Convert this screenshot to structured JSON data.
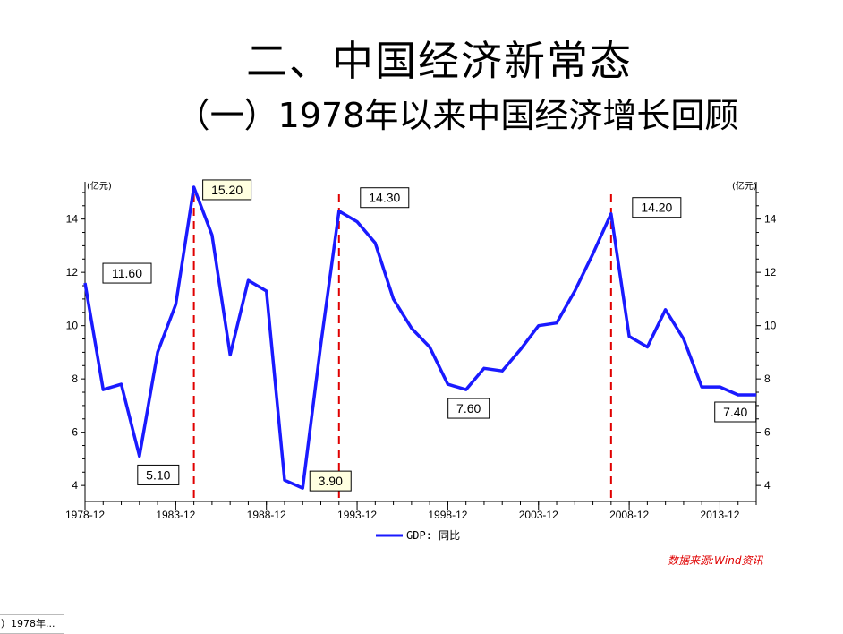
{
  "slide": {
    "title": "二、中国经济新常态",
    "subtitle": "（一）1978年以来中国经济增长回顾",
    "source": "数据来源:Wind资讯",
    "tab_label": "）1978年..."
  },
  "chart_data": {
    "type": "line",
    "title": "",
    "xlabel": "",
    "ylabel_left": "(亿元)",
    "ylabel_right": "(亿元)",
    "ylim": [
      3.4,
      15.4
    ],
    "yticks": [
      4,
      6,
      8,
      10,
      12,
      14
    ],
    "x_tick_labels": [
      "1978-12",
      "1983-12",
      "1988-12",
      "1993-12",
      "1998-12",
      "2003-12",
      "2008-12",
      "2013-12"
    ],
    "x_tick_years": [
      1978,
      1983,
      1988,
      1993,
      1998,
      2003,
      2008,
      2013
    ],
    "xlim": [
      1978,
      2015
    ],
    "legend_position": "bottom-center",
    "grid": false,
    "series": [
      {
        "name": "GDP: 同比",
        "color": "#1a1aff",
        "x": [
          1978,
          1979,
          1980,
          1981,
          1982,
          1983,
          1984,
          1985,
          1986,
          1987,
          1988,
          1989,
          1990,
          1991,
          1992,
          1993,
          1994,
          1995,
          1996,
          1997,
          1998,
          1999,
          2000,
          2001,
          2002,
          2003,
          2004,
          2005,
          2006,
          2007,
          2008,
          2009,
          2010,
          2011,
          2012,
          2013,
          2014,
          2015
        ],
        "values": [
          11.6,
          7.6,
          7.8,
          5.1,
          9.0,
          10.8,
          15.2,
          13.4,
          8.9,
          11.7,
          11.3,
          4.2,
          3.9,
          9.3,
          14.3,
          13.9,
          13.1,
          11.0,
          9.9,
          9.2,
          7.8,
          7.6,
          8.4,
          8.3,
          9.1,
          10.0,
          10.1,
          11.3,
          12.7,
          14.2,
          9.6,
          9.2,
          10.6,
          9.5,
          7.7,
          7.7,
          7.4,
          7.4
        ]
      }
    ],
    "marker_lines": [
      1984,
      1992,
      2007
    ],
    "marker_color": "#e00000",
    "annotations": [
      {
        "label": "11.60",
        "x": 1978,
        "y": 11.6,
        "placement": "right",
        "highlight": false
      },
      {
        "label": "5.10",
        "x": 1981,
        "y": 5.1,
        "placement": "below",
        "highlight": false
      },
      {
        "label": "15.20",
        "x": 1984,
        "y": 15.2,
        "placement": "right",
        "highlight": true
      },
      {
        "label": "3.90",
        "x": 1990,
        "y": 3.9,
        "placement": "right",
        "highlight": true
      },
      {
        "label": "14.30",
        "x": 1992,
        "y": 14.3,
        "placement": "right",
        "highlight": false
      },
      {
        "label": "7.60",
        "x": 1999,
        "y": 7.6,
        "placement": "below",
        "highlight": false
      },
      {
        "label": "14.20",
        "x": 2007,
        "y": 14.2,
        "placement": "right",
        "highlight": false
      },
      {
        "label": "7.40",
        "x": 2014,
        "y": 7.4,
        "placement": "below",
        "highlight": false
      }
    ]
  }
}
